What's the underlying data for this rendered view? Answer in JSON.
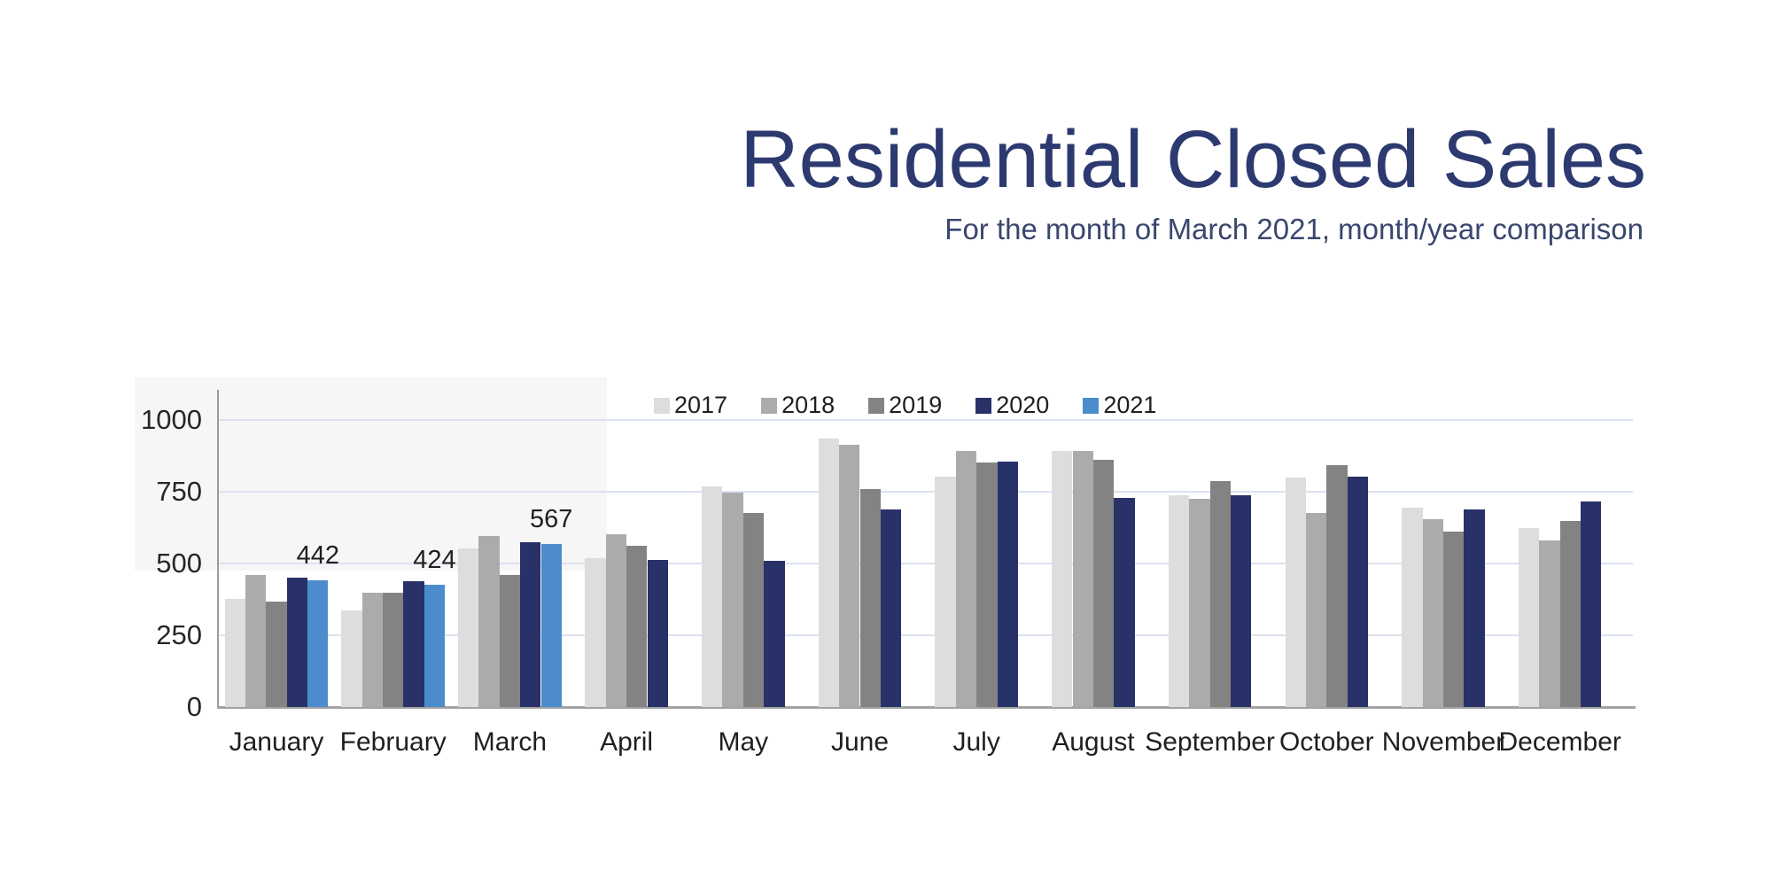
{
  "title": "Residential Closed Sales",
  "subtitle": "For the month of March 2021, month/year comparison",
  "colors": {
    "title_text": "#2d3a70",
    "subtitle_text": "#3a466e",
    "gridline": "#dbe2ef",
    "axis": "#9b9b9b",
    "series_2017": "#dddddd",
    "series_2018": "#ababab",
    "series_2019": "#838383",
    "series_2020": "#283168",
    "series_2021": "#4c8ccc"
  },
  "chart_data": {
    "type": "bar",
    "title": "Residential Closed Sales",
    "subtitle": "For the month of March 2021, month/year comparison",
    "categories": [
      "January",
      "February",
      "March",
      "April",
      "May",
      "June",
      "July",
      "August",
      "September",
      "October",
      "November",
      "December"
    ],
    "series": [
      {
        "name": "2017",
        "color": "#dddddd",
        "annotate": false,
        "values": [
          375,
          337,
          553,
          519,
          768,
          933,
          800,
          891,
          736,
          799,
          694,
          623
        ]
      },
      {
        "name": "2018",
        "color": "#ababab",
        "annotate": false,
        "values": [
          460,
          397,
          595,
          602,
          745,
          913,
          891,
          891,
          724,
          674,
          654,
          580
        ]
      },
      {
        "name": "2019",
        "color": "#838383",
        "annotate": false,
        "values": [
          367,
          397,
          458,
          561,
          674,
          757,
          851,
          861,
          787,
          841,
          610,
          646
        ]
      },
      {
        "name": "2020",
        "color": "#283168",
        "annotate": false,
        "values": [
          450,
          438,
          573,
          513,
          510,
          688,
          853,
          726,
          738,
          801,
          688,
          716
        ]
      },
      {
        "name": "2021",
        "color": "#4c8ccc",
        "annotate": true,
        "values": [
          442,
          424,
          567,
          null,
          null,
          null,
          null,
          null,
          null,
          null,
          null,
          null
        ]
      }
    ],
    "data_labels": [
      {
        "category": "January",
        "series": "2021",
        "label": "442"
      },
      {
        "category": "February",
        "series": "2021",
        "label": "424"
      },
      {
        "category": "March",
        "series": "2021",
        "label": "567"
      }
    ],
    "xlabel": "",
    "ylabel": "",
    "ylim": [
      0,
      1000
    ],
    "yticks": [
      0,
      250,
      500,
      750,
      1000
    ],
    "grid": true,
    "legend_position": "top-center"
  }
}
